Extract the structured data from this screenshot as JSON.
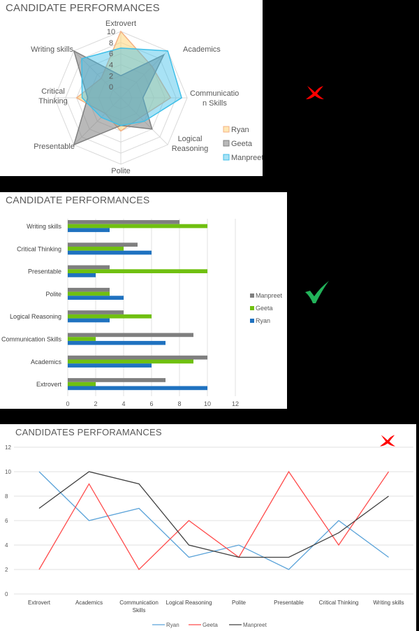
{
  "candidates": [
    "Ryan",
    "Geeta",
    "Manpreet"
  ],
  "colors": {
    "background": "#000000",
    "radar_ryan": "#F4B183",
    "radar_geeta": "#808080",
    "radar_manpreet": "#3FBFE8",
    "bar_manpreet": "#7F7F7F",
    "bar_geeta": "#70C010",
    "bar_ryan": "#1F72C0",
    "line_ryan": "#5BA3D9",
    "line_geeta": "#FF4B4B",
    "line_manpreet": "#404040",
    "cross": "#FF0000",
    "check": "#22B35A"
  },
  "marks": {
    "radar": "cross-icon",
    "bar": "check-icon",
    "line": "cross-icon"
  },
  "chart_data": [
    {
      "type": "radar",
      "title": "CANDIDATE PERFORMANCES",
      "categories": [
        "Extrovert",
        "Academics",
        "Communication Skills",
        "Logical Reasoning",
        "Polite",
        "Presentable",
        "Critical Thinking",
        "Writing skills"
      ],
      "category_labels": [
        "Extrovert",
        "Academics",
        "Communicatio n Skills",
        "Logical Reasoning",
        "Polite",
        "Presentable",
        "Critical Thinking",
        "Writing skills"
      ],
      "ticks": [
        "0",
        "2",
        "4",
        "6",
        "8",
        "10"
      ],
      "range": [
        0,
        10
      ],
      "series": [
        {
          "name": "Ryan",
          "values": [
            10,
            6,
            7,
            3,
            4,
            2,
            6,
            3
          ]
        },
        {
          "name": "Geeta",
          "values": [
            2,
            9,
            2,
            6,
            3,
            10,
            4,
            10
          ]
        },
        {
          "name": "Manpreet",
          "values": [
            7,
            10,
            9,
            4,
            3,
            3,
            5,
            8
          ]
        }
      ],
      "legend_position": "right-bottom",
      "verdict": "cross"
    },
    {
      "type": "bar",
      "orientation": "horizontal",
      "title": "CANDIDATE PERFORMANCES",
      "categories": [
        "Writing skills",
        "Critical Thinking",
        "Presentable",
        "Polite",
        "Logical Reasoning",
        "Communication Skills",
        "Academics",
        "Extrovert"
      ],
      "series": [
        {
          "name": "Manpreet",
          "values": [
            8,
            5,
            3,
            3,
            4,
            9,
            10,
            7
          ]
        },
        {
          "name": "Geeta",
          "values": [
            10,
            4,
            10,
            3,
            6,
            2,
            9,
            2
          ]
        },
        {
          "name": "Ryan",
          "values": [
            3,
            6,
            2,
            4,
            3,
            7,
            6,
            10
          ]
        }
      ],
      "xticks": [
        "0",
        "2",
        "4",
        "6",
        "8",
        "10",
        "12"
      ],
      "xlim": [
        0,
        12
      ],
      "grid": true,
      "legend_position": "right",
      "verdict": "check"
    },
    {
      "type": "line",
      "title": "CANDIDATES PERFORAMANCES",
      "categories": [
        "Extrovert",
        "Academics",
        "Communication Skills",
        "Logical Reasoning",
        "Polite",
        "Presentable",
        "Critical Thinking",
        "Writing skills"
      ],
      "series": [
        {
          "name": "Ryan",
          "values": [
            10,
            6,
            7,
            3,
            4,
            2,
            6,
            3
          ]
        },
        {
          "name": "Geeta",
          "values": [
            2,
            9,
            2,
            6,
            3,
            10,
            4,
            10
          ]
        },
        {
          "name": "Manpreet",
          "values": [
            7,
            10,
            9,
            4,
            3,
            3,
            5,
            8
          ]
        }
      ],
      "yticks": [
        "0",
        "2",
        "4",
        "6",
        "8",
        "10",
        "12"
      ],
      "ylim": [
        0,
        12
      ],
      "grid": true,
      "legend_position": "bottom",
      "verdict": "cross"
    }
  ]
}
